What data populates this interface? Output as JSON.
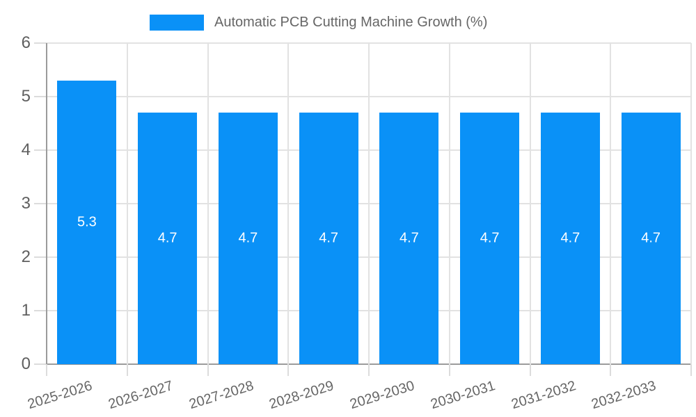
{
  "chart_data": {
    "type": "bar",
    "title": "Automatic PCB Cutting Machine Growth (%)",
    "categories": [
      "2025-2026",
      "2026-2027",
      "2027-2028",
      "2028-2029",
      "2029-2030",
      "2030-2031",
      "2031-2032",
      "2032-2033"
    ],
    "values": [
      5.3,
      4.7,
      4.7,
      4.7,
      4.7,
      4.7,
      4.7,
      4.7
    ],
    "value_labels": [
      "5.3",
      "4.7",
      "4.7",
      "4.7",
      "4.7",
      "4.7",
      "4.7",
      "4.7"
    ],
    "xlabel": "",
    "ylabel": "",
    "ylim": [
      0,
      6
    ],
    "yticks": [
      0,
      1,
      2,
      3,
      4,
      5,
      6
    ],
    "grid": true,
    "legend_position": "top-center",
    "value_labels_position": "inside-center"
  },
  "colors": {
    "background": "#ffffff",
    "bar": "#0a91f7",
    "grid": "#e2e2e2",
    "tick_mark": "#dcdcdc",
    "axis_line": "#9b9b9b",
    "tick_text": "#5f5f5f",
    "legend_text": "#666666",
    "bar_value_text": "#ffffff"
  }
}
